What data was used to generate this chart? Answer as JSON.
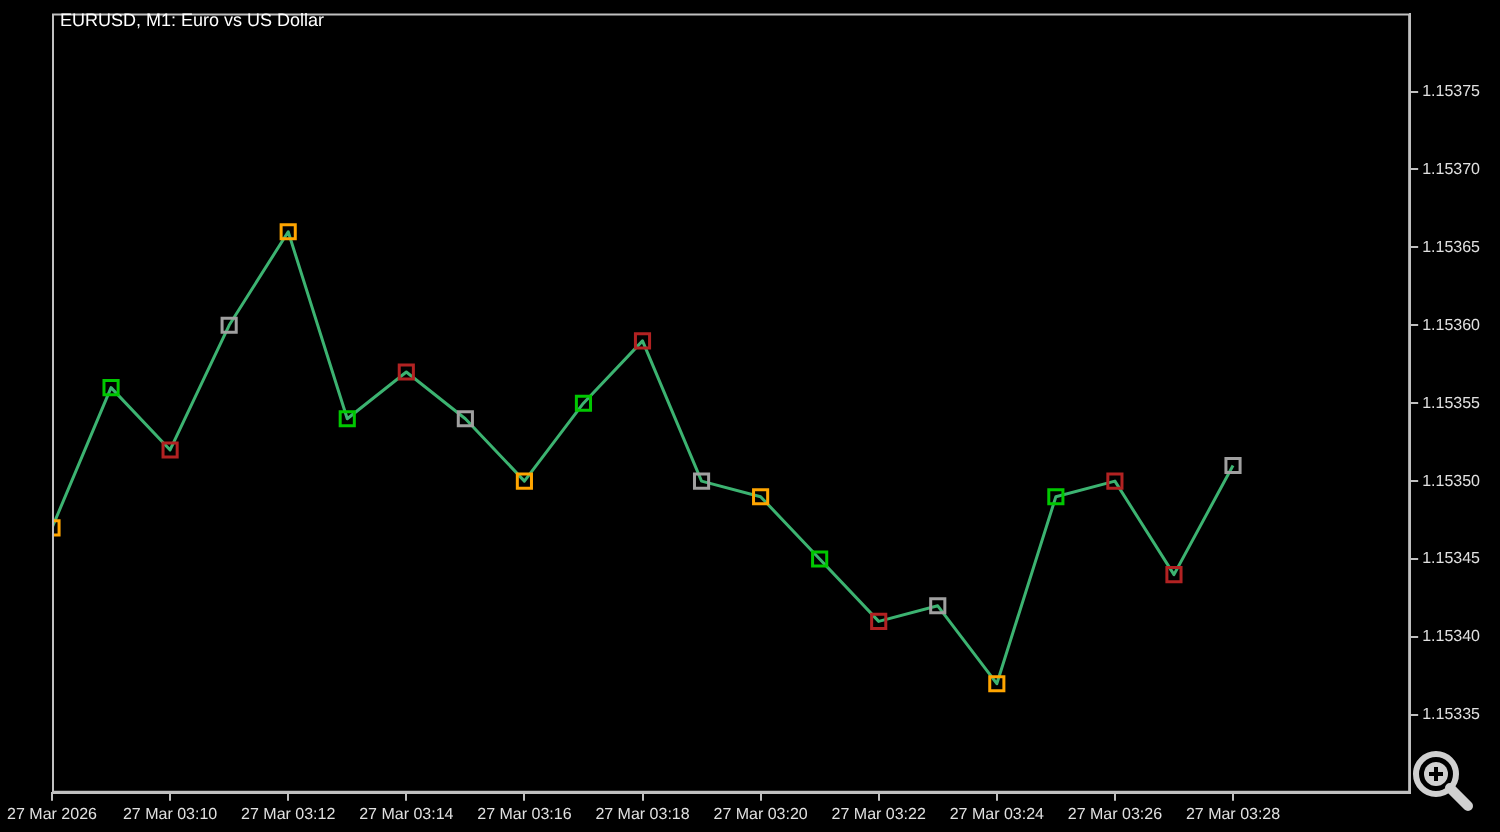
{
  "chart_data": {
    "type": "line",
    "title": "EURUSD, M1:  Euro vs US Dollar",
    "x": [
      "2026-03-27T03:08",
      "2026-03-27T03:09",
      "2026-03-27T03:10",
      "2026-03-27T03:11",
      "2026-03-27T03:12",
      "2026-03-27T03:13",
      "2026-03-27T03:14",
      "2026-03-27T03:15",
      "2026-03-27T03:16",
      "2026-03-27T03:17",
      "2026-03-27T03:18",
      "2026-03-27T03:19",
      "2026-03-27T03:20",
      "2026-03-27T03:21",
      "2026-03-27T03:22",
      "2026-03-27T03:23",
      "2026-03-27T03:24",
      "2026-03-27T03:25",
      "2026-03-27T03:26",
      "2026-03-27T03:27",
      "2026-03-27T03:28"
    ],
    "series": [
      {
        "color": "#3cb371",
        "values": [
          1.15347,
          1.15356,
          1.15352,
          1.1536,
          1.15366,
          1.15354,
          1.15357,
          1.15354,
          1.1535,
          1.15355,
          1.15359,
          1.1535,
          1.15349,
          1.15345,
          1.15341,
          1.15342,
          1.15337,
          1.15349,
          1.1535,
          1.15344,
          1.15351
        ],
        "colors": [
          "#ffa500",
          "#00c800",
          "#b22222",
          "#a0a0a0",
          "#ffa500",
          "#00c800",
          "#b22222",
          "#a0a0a0",
          "#ffa500",
          "#00c800",
          "#b22222",
          "#a0a0a0",
          "#ffa500",
          "#00c800",
          "#b22222",
          "#a0a0a0",
          "#ffa500",
          "#00c800",
          "#b22222",
          "#b22222",
          "#a0a0a0"
        ]
      }
    ],
    "marker": "square",
    "grid": false,
    "legend": false,
    "xlim": [
      "2026-03-27T03:08",
      "2026-03-27T03:31"
    ],
    "xticks": [
      {
        "value": "2026-03-27T03:08",
        "label": "27 Mar 2026"
      },
      {
        "value": "2026-03-27T03:10",
        "label": "27 Mar 03:10"
      },
      {
        "value": "2026-03-27T03:12",
        "label": "27 Mar 03:12"
      },
      {
        "value": "2026-03-27T03:14",
        "label": "27 Mar 03:14"
      },
      {
        "value": "2026-03-27T03:16",
        "label": "27 Mar 03:16"
      },
      {
        "value": "2026-03-27T03:18",
        "label": "27 Mar 03:18"
      },
      {
        "value": "2026-03-27T03:20",
        "label": "27 Mar 03:20"
      },
      {
        "value": "2026-03-27T03:22",
        "label": "27 Mar 03:22"
      },
      {
        "value": "2026-03-27T03:24",
        "label": "27 Mar 03:24"
      },
      {
        "value": "2026-03-27T03:26",
        "label": "27 Mar 03:26"
      },
      {
        "value": "2026-03-27T03:28",
        "label": "27 Mar 03:28"
      }
    ],
    "ylim": [
      1.1533,
      1.1538
    ],
    "yticks": [
      {
        "value": 1.15335,
        "label": "1.15335"
      },
      {
        "value": 1.1534,
        "label": "1.15340"
      },
      {
        "value": 1.15345,
        "label": "1.15345"
      },
      {
        "value": 1.1535,
        "label": "1.15350"
      },
      {
        "value": 1.15355,
        "label": "1.15355"
      },
      {
        "value": 1.1536,
        "label": "1.15360"
      },
      {
        "value": 1.15365,
        "label": "1.15365"
      },
      {
        "value": 1.1537,
        "label": "1.15370"
      },
      {
        "value": 1.15375,
        "label": "1.15375"
      }
    ]
  }
}
